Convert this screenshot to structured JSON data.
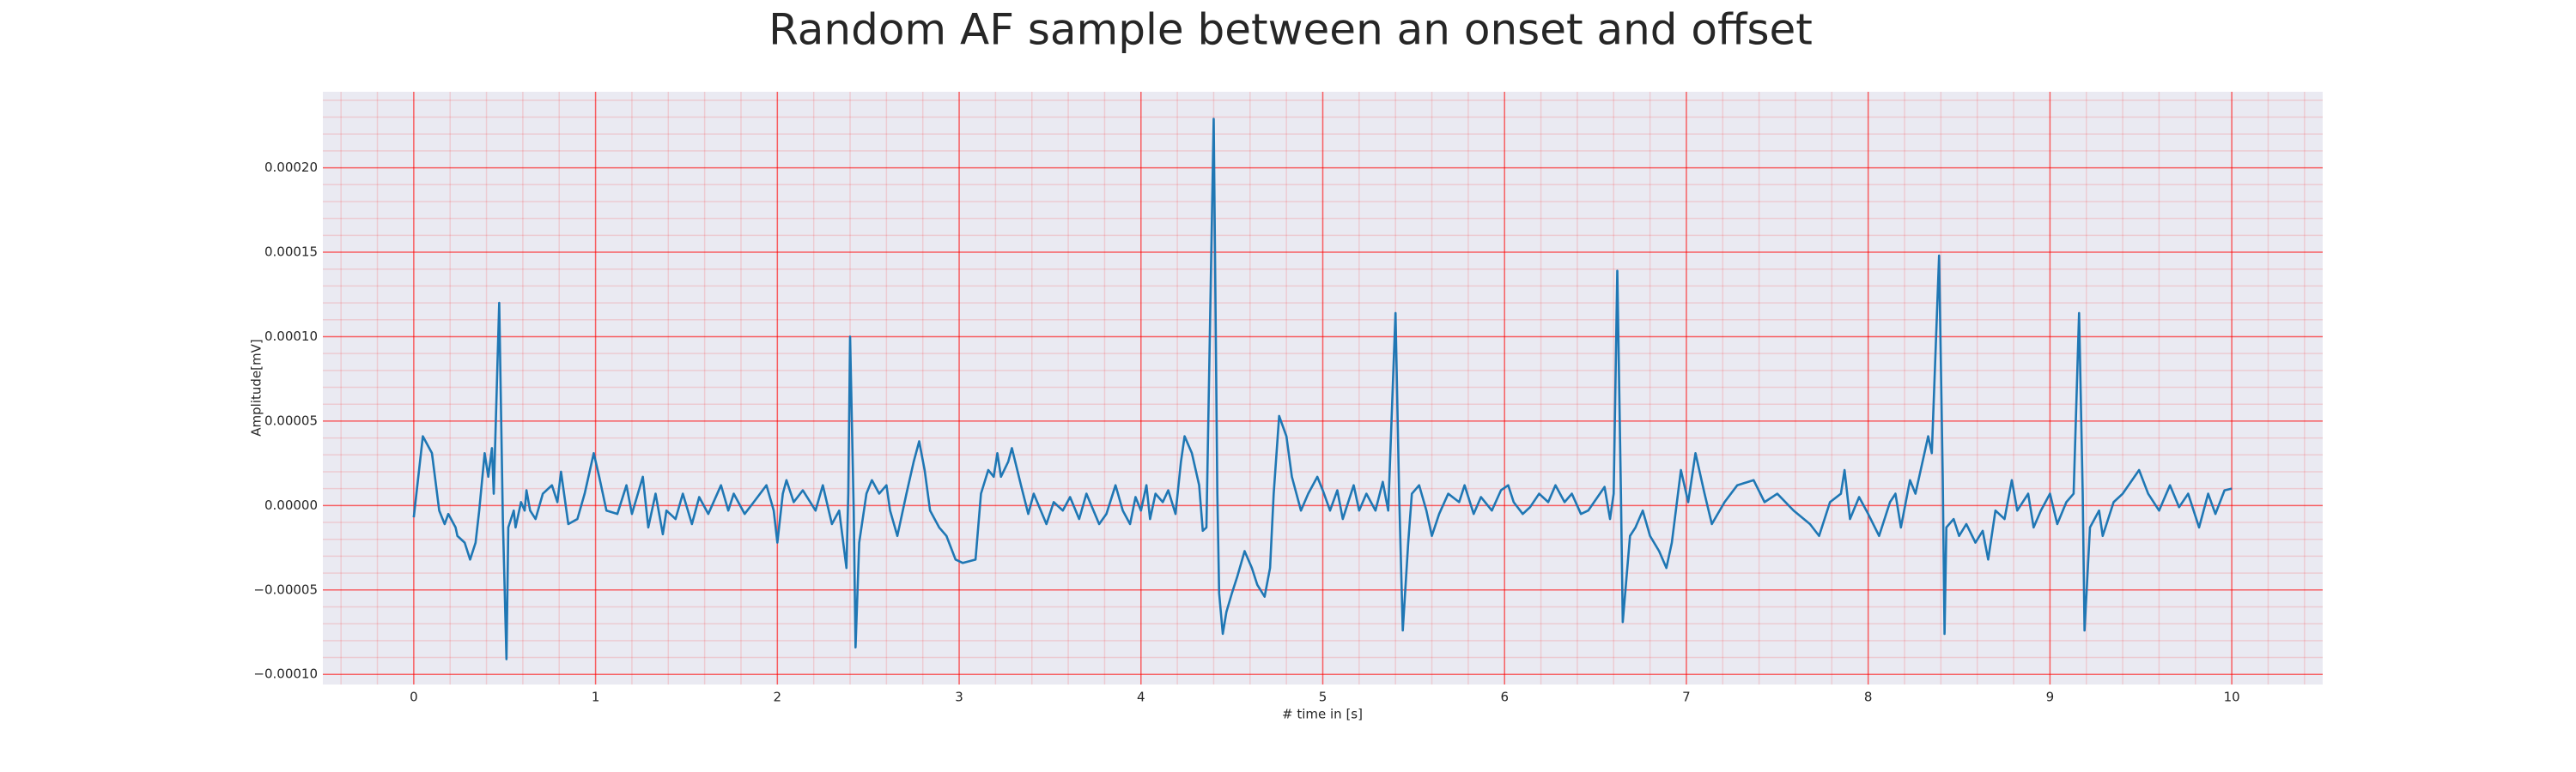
{
  "chart_data": {
    "type": "line",
    "title": "Random AF sample between an onset and offset",
    "xlabel": "# time in [s]",
    "ylabel": "Amplitude[mV]",
    "color": "#1f77b4",
    "grid": true,
    "minor_grid": true,
    "xlim": [
      -0.5,
      10.5
    ],
    "ylim": [
      -0.000106,
      0.000245
    ],
    "xticks": [
      0,
      1,
      2,
      3,
      4,
      5,
      6,
      7,
      8,
      9,
      10
    ],
    "yticks": [
      {
        "value": -0.0001,
        "label": "−0.00010"
      },
      {
        "value": -5e-05,
        "label": "−0.00005"
      },
      {
        "value": 0,
        "label": "0.00000"
      },
      {
        "value": 5e-05,
        "label": "0.00005"
      },
      {
        "value": 0.0001,
        "label": "0.00010"
      },
      {
        "value": 0.00015,
        "label": "0.00015"
      },
      {
        "value": 0.0002,
        "label": "0.00020"
      }
    ],
    "minor_xticks": [
      -0.4,
      -0.2,
      0.2,
      0.4,
      0.6,
      0.8,
      1.2,
      1.4,
      1.6,
      1.8,
      2.2,
      2.4,
      2.6,
      2.8,
      3.2,
      3.4,
      3.6,
      3.8,
      4.2,
      4.4,
      4.6,
      4.8,
      5.2,
      5.4,
      5.6,
      5.8,
      6.2,
      6.4,
      6.6,
      6.8,
      7.2,
      7.4,
      7.6,
      7.8,
      8.2,
      8.4,
      8.6,
      8.8,
      9.2,
      9.4,
      9.6,
      9.8,
      10.2,
      10.4
    ],
    "minor_yticks": [
      -9e-05,
      -8e-05,
      -7e-05,
      -6e-05,
      -4e-05,
      -3e-05,
      -2e-05,
      -1e-05,
      1e-05,
      2e-05,
      3e-05,
      4e-05,
      6e-05,
      7e-05,
      8e-05,
      9e-05,
      0.00011,
      0.00012,
      0.00013,
      0.00014,
      0.00016,
      0.00017,
      0.00018,
      0.00019,
      0.00021,
      0.00022,
      0.00023,
      0.00024
    ],
    "x": [
      0.0,
      0.05,
      0.1,
      0.14,
      0.17,
      0.19,
      0.23,
      0.24,
      0.28,
      0.31,
      0.34,
      0.36,
      0.39,
      0.41,
      0.43,
      0.44,
      0.47,
      0.49,
      0.51,
      0.52,
      0.55,
      0.56,
      0.59,
      0.61,
      0.62,
      0.64,
      0.67,
      0.71,
      0.76,
      0.79,
      0.81,
      0.85,
      0.9,
      0.94,
      0.99,
      1.02,
      1.06,
      1.12,
      1.17,
      1.2,
      1.26,
      1.29,
      1.33,
      1.37,
      1.39,
      1.44,
      1.48,
      1.53,
      1.57,
      1.62,
      1.69,
      1.73,
      1.76,
      1.82,
      1.87,
      1.94,
      1.98,
      2.0,
      2.03,
      2.05,
      2.09,
      2.14,
      2.21,
      2.25,
      2.3,
      2.34,
      2.38,
      2.39,
      2.4,
      2.42,
      2.43,
      2.45,
      2.49,
      2.52,
      2.56,
      2.6,
      2.62,
      2.66,
      2.71,
      2.75,
      2.78,
      2.81,
      2.84,
      2.89,
      2.93,
      2.98,
      3.02,
      3.09,
      3.12,
      3.16,
      3.19,
      3.21,
      3.23,
      3.27,
      3.29,
      3.34,
      3.38,
      3.41,
      3.48,
      3.52,
      3.57,
      3.61,
      3.66,
      3.7,
      3.77,
      3.81,
      3.86,
      3.9,
      3.94,
      3.97,
      4.0,
      4.03,
      4.05,
      4.08,
      4.12,
      4.15,
      4.19,
      4.22,
      4.24,
      4.28,
      4.32,
      4.34,
      4.36,
      4.4,
      4.42,
      4.43,
      4.45,
      4.47,
      4.5,
      4.53,
      4.57,
      4.61,
      4.64,
      4.68,
      4.71,
      4.73,
      4.76,
      4.8,
      4.83,
      4.88,
      4.92,
      4.97,
      5.0,
      5.04,
      5.08,
      5.11,
      5.17,
      5.2,
      5.24,
      5.29,
      5.33,
      5.36,
      5.4,
      5.42,
      5.44,
      5.47,
      5.49,
      5.53,
      5.57,
      5.6,
      5.64,
      5.69,
      5.75,
      5.78,
      5.83,
      5.87,
      5.93,
      5.98,
      6.02,
      6.05,
      6.1,
      6.14,
      6.19,
      6.24,
      6.28,
      6.33,
      6.37,
      6.42,
      6.46,
      6.55,
      6.58,
      6.6,
      6.62,
      6.64,
      6.65,
      6.69,
      6.72,
      6.76,
      6.8,
      6.85,
      6.89,
      6.92,
      6.97,
      7.01,
      7.05,
      7.1,
      7.14,
      7.21,
      7.28,
      7.37,
      7.43,
      7.5,
      7.59,
      7.68,
      7.73,
      7.79,
      7.85,
      7.87,
      7.9,
      7.95,
      8.0,
      8.06,
      8.12,
      8.15,
      8.18,
      8.23,
      8.26,
      8.33,
      8.35,
      8.39,
      8.41,
      8.42,
      8.43,
      8.47,
      8.5,
      8.54,
      8.59,
      8.63,
      8.66,
      8.7,
      8.75,
      8.79,
      8.82,
      8.88,
      8.91,
      8.95,
      9.0,
      9.04,
      9.09,
      9.13,
      9.16,
      9.18,
      9.19,
      9.22,
      9.27,
      9.29,
      9.35,
      9.4,
      9.49,
      9.54,
      9.6,
      9.66,
      9.71,
      9.76,
      9.82,
      9.87,
      9.91,
      9.96,
      10.0
    ],
    "values": [
      -7e-06,
      4.1e-05,
      3.1e-05,
      -3e-06,
      -1.1e-05,
      -5e-06,
      -1.3e-05,
      -1.8e-05,
      -2.2e-05,
      -3.2e-05,
      -2.2e-05,
      -3e-06,
      3.1e-05,
      1.7e-05,
      3.4e-05,
      7e-06,
      0.00012,
      -8e-06,
      -9.1e-05,
      -1.3e-05,
      -3e-06,
      -1.3e-05,
      2e-06,
      -3e-06,
      9e-06,
      -3e-06,
      -8e-06,
      7e-06,
      1.2e-05,
      2e-06,
      2e-05,
      -1.1e-05,
      -8e-06,
      7e-06,
      3.1e-05,
      1.7e-05,
      -3e-06,
      -5e-06,
      1.2e-05,
      -5e-06,
      1.7e-05,
      -1.3e-05,
      7e-06,
      -1.7e-05,
      -3e-06,
      -8e-06,
      7e-06,
      -1.1e-05,
      5e-06,
      -5e-06,
      1.2e-05,
      -3e-06,
      7e-06,
      -5e-06,
      2e-06,
      1.2e-05,
      -3e-06,
      -2.2e-05,
      7e-06,
      1.5e-05,
      2e-06,
      9e-06,
      -3e-06,
      1.2e-05,
      -1.1e-05,
      -3e-06,
      -3.7e-05,
      7e-06,
      0.0001,
      -3e-06,
      -8.4e-05,
      -2.2e-05,
      7e-06,
      1.5e-05,
      7e-06,
      1.2e-05,
      -3e-06,
      -1.8e-05,
      7e-06,
      2.6e-05,
      3.8e-05,
      2.1e-05,
      -3e-06,
      -1.3e-05,
      -1.8e-05,
      -3.2e-05,
      -3.4e-05,
      -3.2e-05,
      7e-06,
      2.1e-05,
      1.7e-05,
      3.1e-05,
      1.7e-05,
      2.6e-05,
      3.4e-05,
      1.2e-05,
      -5e-06,
      7e-06,
      -1.1e-05,
      2e-06,
      -3e-06,
      5e-06,
      -8e-06,
      7e-06,
      -1.1e-05,
      -5e-06,
      1.2e-05,
      -3e-06,
      -1.1e-05,
      5e-06,
      -3e-06,
      1.2e-05,
      -8e-06,
      7e-06,
      2e-06,
      9e-06,
      -5e-06,
      2.6e-05,
      4.1e-05,
      3.1e-05,
      1.2e-05,
      -1.5e-05,
      -1.3e-05,
      0.000229,
      7e-06,
      -5.2e-05,
      -7.6e-05,
      -6.3e-05,
      -5.2e-05,
      -4.2e-05,
      -2.7e-05,
      -3.7e-05,
      -4.7e-05,
      -5.4e-05,
      -3.7e-05,
      7e-06,
      5.3e-05,
      4.1e-05,
      1.7e-05,
      -3e-06,
      7e-06,
      1.7e-05,
      9e-06,
      -3e-06,
      9e-06,
      -8e-06,
      1.2e-05,
      -3e-06,
      7e-06,
      -3e-06,
      1.4e-05,
      -3e-06,
      0.000114,
      7e-06,
      -7.4e-05,
      -2.2e-05,
      7e-06,
      1.2e-05,
      -3e-06,
      -1.8e-05,
      -5e-06,
      7e-06,
      2e-06,
      1.2e-05,
      -5e-06,
      5e-06,
      -3e-06,
      9e-06,
      1.2e-05,
      2e-06,
      -5e-06,
      -1e-06,
      7e-06,
      2e-06,
      1.2e-05,
      2e-06,
      7e-06,
      -5e-06,
      -3e-06,
      1.1e-05,
      -8e-06,
      7e-06,
      0.000139,
      7e-06,
      -6.9e-05,
      -1.8e-05,
      -1.3e-05,
      -3e-06,
      -1.8e-05,
      -2.7e-05,
      -3.7e-05,
      -2.2e-05,
      2.1e-05,
      2e-06,
      3.1e-05,
      7e-06,
      -1.1e-05,
      2e-06,
      1.2e-05,
      1.5e-05,
      2e-06,
      7e-06,
      -3e-06,
      -1.1e-05,
      -1.8e-05,
      2e-06,
      7e-06,
      2.1e-05,
      -8e-06,
      5e-06,
      -5e-06,
      -1.8e-05,
      2e-06,
      7e-06,
      -1.3e-05,
      1.5e-05,
      7e-06,
      4.1e-05,
      3.1e-05,
      0.000148,
      1.7e-05,
      -7.6e-05,
      -1.3e-05,
      -8e-06,
      -1.8e-05,
      -1.1e-05,
      -2.2e-05,
      -1.5e-05,
      -3.2e-05,
      -3e-06,
      -8e-06,
      1.5e-05,
      -3e-06,
      7e-06,
      -1.3e-05,
      -3e-06,
      7e-06,
      -1.1e-05,
      2e-06,
      7e-06,
      0.000114,
      7e-06,
      -7.4e-05,
      -1.3e-05,
      -3e-06,
      -1.8e-05,
      2e-06,
      7e-06,
      2.1e-05,
      7e-06,
      -3e-06,
      1.2e-05,
      -1e-06,
      7e-06,
      -1.3e-05,
      7e-06,
      -5e-06,
      9e-06,
      1e-05
    ]
  }
}
